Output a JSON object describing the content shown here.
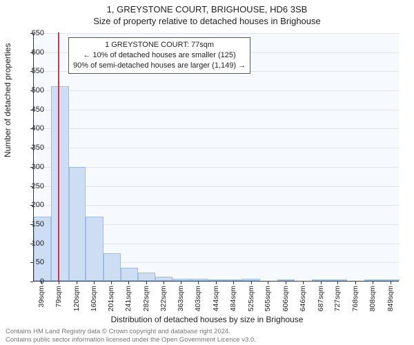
{
  "title_main": "1, GREYSTONE COURT, BRIGHOUSE, HD6 3SB",
  "title_sub": "Size of property relative to detached houses in Brighouse",
  "ylabel": "Number of detached properties",
  "xlabel": "Distribution of detached houses by size in Brighouse",
  "chart": {
    "type": "histogram",
    "plot_bg": "#f6f9fd",
    "grid_color": "#dbe4ef",
    "axis_color": "#333333",
    "bar_fill": "#cdddf3",
    "bar_stroke": "#9fbde0",
    "ref_line_color": "#d6334a",
    "ref_line_x": 77,
    "xlim": [
      19,
      869
    ],
    "ylim": [
      0,
      650
    ],
    "ytick_step": 50,
    "xtick_labels": [
      "39sqm",
      "79sqm",
      "120sqm",
      "160sqm",
      "201sqm",
      "241sqm",
      "282sqm",
      "322sqm",
      "363sqm",
      "403sqm",
      "444sqm",
      "484sqm",
      "525sqm",
      "565sqm",
      "606sqm",
      "646sqm",
      "687sqm",
      "727sqm",
      "768sqm",
      "808sqm",
      "849sqm"
    ],
    "xtick_values": [
      39,
      79,
      120,
      160,
      201,
      241,
      282,
      322,
      363,
      403,
      444,
      484,
      525,
      565,
      606,
      646,
      687,
      727,
      768,
      808,
      849
    ],
    "bars": [
      {
        "x0": 19,
        "x1": 59,
        "y": 168
      },
      {
        "x0": 59,
        "x1": 100,
        "y": 510
      },
      {
        "x0": 100,
        "x1": 140,
        "y": 298
      },
      {
        "x0": 140,
        "x1": 181,
        "y": 168
      },
      {
        "x0": 181,
        "x1": 221,
        "y": 73
      },
      {
        "x0": 221,
        "x1": 261,
        "y": 35
      },
      {
        "x0": 261,
        "x1": 302,
        "y": 22
      },
      {
        "x0": 302,
        "x1": 342,
        "y": 11
      },
      {
        "x0": 342,
        "x1": 383,
        "y": 6
      },
      {
        "x0": 383,
        "x1": 423,
        "y": 6
      },
      {
        "x0": 423,
        "x1": 464,
        "y": 4
      },
      {
        "x0": 464,
        "x1": 504,
        "y": 3
      },
      {
        "x0": 504,
        "x1": 545,
        "y": 6
      },
      {
        "x0": 545,
        "x1": 585,
        "y": 0
      },
      {
        "x0": 585,
        "x1": 626,
        "y": 2
      },
      {
        "x0": 626,
        "x1": 666,
        "y": 0
      },
      {
        "x0": 666,
        "x1": 707,
        "y": 1
      },
      {
        "x0": 707,
        "x1": 747,
        "y": 1
      },
      {
        "x0": 747,
        "x1": 788,
        "y": 0
      },
      {
        "x0": 788,
        "x1": 828,
        "y": 1
      },
      {
        "x0": 828,
        "x1": 869,
        "y": 1
      }
    ]
  },
  "annotation": {
    "line1": "1 GREYSTONE COURT: 77sqm",
    "line2": "← 10% of detached houses are smaller (125)",
    "line3": "90% of semi-detached houses are larger (1,149) →"
  },
  "footer": {
    "line1": "Contains HM Land Registry data © Crown copyright and database right 2024.",
    "line2": "Contains public sector information licensed under the Open Government Licence v3.0."
  },
  "fonts": {
    "title": 13,
    "axis_label": 12,
    "tick": 11,
    "annot": 11,
    "footer": 9.5
  }
}
